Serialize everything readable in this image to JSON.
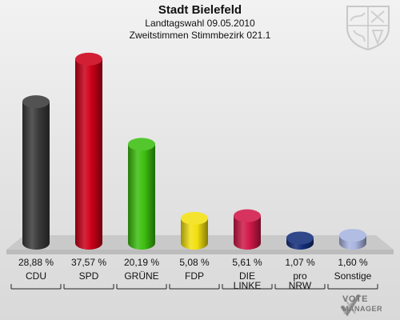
{
  "header": {
    "title": "Stadt Bielefeld",
    "subtitle1": "Landtagswahl 09.05.2010",
    "subtitle2": "Zweitstimmen Stimmbezirk 021.1"
  },
  "branding": {
    "logo_word1": "VOTE",
    "logo_word2": "MANAGER",
    "crest_icon": "nrw-coat-of-arms-icon",
    "logo_icon": "vote-manager-check-icon"
  },
  "chart_data": {
    "type": "bar",
    "categories": [
      "CDU",
      "SPD",
      "GRÜNE",
      "FDP",
      "DIE LINKE",
      "pro NRW",
      "Sonstige"
    ],
    "category_lines": [
      [
        "CDU"
      ],
      [
        "SPD"
      ],
      [
        "GRÜNE"
      ],
      [
        "FDP"
      ],
      [
        "DIE",
        "LINKE"
      ],
      [
        "pro",
        "NRW"
      ],
      [
        "Sonstige"
      ]
    ],
    "values": [
      28.88,
      37.57,
      20.19,
      5.08,
      5.61,
      1.07,
      1.6
    ],
    "value_labels": [
      "28,88 %",
      "37,57 %",
      "20,19 %",
      "5,08 %",
      "5,61 %",
      "1,07 %",
      "1,60 %"
    ],
    "colors": [
      "#3a3a3a",
      "#cc0018",
      "#3cbf10",
      "#f2e010",
      "#d01848",
      "#142e7a",
      "#a8b4e0"
    ],
    "ylim": [
      0,
      40
    ],
    "unit": "%",
    "grid": false
  }
}
